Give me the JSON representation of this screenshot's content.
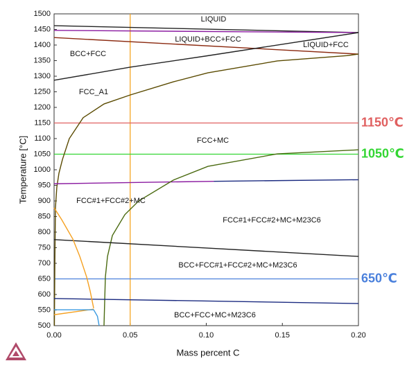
{
  "chart_data": {
    "type": "line",
    "xlabel": "Mass percent C",
    "ylabel": "Temperature [°C]",
    "xlim": [
      0,
      0.2
    ],
    "ylim": [
      500,
      1500
    ],
    "xticks": [
      {
        "value": 0,
        "label": "0.00"
      },
      0.05,
      {
        "value": 0.1,
        "label": "0.10"
      },
      0.15,
      {
        "value": 0.2,
        "label": "0.20"
      }
    ],
    "yticks": [
      500,
      550,
      600,
      650,
      700,
      750,
      800,
      850,
      900,
      950,
      1000,
      1050,
      1100,
      1150,
      1200,
      1250,
      1300,
      1350,
      1400,
      1450,
      1500
    ],
    "grid": false,
    "reference_lines": [
      {
        "value": 1150,
        "label": "1150℃",
        "color": "#e06060"
      },
      {
        "value": 1050,
        "label": "1050℃",
        "color": "#33d633"
      },
      {
        "value": 650,
        "label": "650℃",
        "color": "#4a80dc"
      }
    ],
    "vertical_lines": [
      {
        "value": 0.05,
        "color": "#f5a623"
      }
    ],
    "regions": [
      "LIQUID",
      "LIQUID+BCC+FCC",
      "LIQUID+FCC",
      "BCC+FCC",
      "FCC_A1",
      "FCC+MC",
      "FCC#1+FCC#2+MC",
      "FCC#1+FCC#2+MC+M23C6",
      "BCC+FCC#1+FCC#2+MC+M23C6",
      "BCC+FCC+MC+M23C6"
    ],
    "series": [
      {
        "color": "#222222",
        "x": [
          0,
          0.2
        ],
        "values": [
          1462,
          1440
        ]
      },
      {
        "color": "#8a1aa0",
        "x": [
          0,
          0.2
        ],
        "values": [
          1447,
          1440
        ]
      },
      {
        "color": "#8b2a10",
        "x": [
          0,
          0.2
        ],
        "values": [
          1424,
          1371
        ]
      },
      {
        "color": "#222222",
        "x": [
          0,
          0.05,
          0.1,
          0.2
        ],
        "values": [
          1287,
          1329,
          1365,
          1440
        ]
      },
      {
        "color": "#5a4a00",
        "x": [
          0.0002,
          0.0005,
          0.0009,
          0.0018,
          0.0032,
          0.0055,
          0.01,
          0.0191,
          0.0328,
          0.0501,
          0.0784,
          0.1011,
          0.1467,
          0.1923,
          0.2
        ],
        "values": [
          500,
          700,
          878,
          944,
          989,
          1033,
          1100,
          1167,
          1211,
          1240,
          1282,
          1311,
          1349,
          1366,
          1371
        ]
      },
      {
        "color": "#8a1aa0",
        "x": [
          0,
          0.105
        ],
        "values": [
          955,
          963
        ]
      },
      {
        "color": "#1a2a80",
        "x": [
          0.105,
          0.2
        ],
        "values": [
          963,
          968
        ]
      },
      {
        "color": "#4a6a10",
        "x": [
          0.0328,
          0.0337,
          0.0351,
          0.0383,
          0.0465,
          0.0556,
          0.0784,
          0.1011,
          0.1467,
          0.2
        ],
        "values": [
          500,
          656,
          722,
          789,
          856,
          900,
          967,
          1011,
          1051,
          1064
        ]
      },
      {
        "color": "#222222",
        "x": [
          0,
          0.1,
          0.2
        ],
        "values": [
          776,
          749,
          722
        ]
      },
      {
        "color": "#1a2a80",
        "x": [
          0,
          0.2
        ],
        "values": [
          587,
          571
        ]
      },
      {
        "color": "#f5a020",
        "x": [
          0,
          0.005,
          0.0123,
          0.0169,
          0.0214,
          0.0237,
          0.026
        ],
        "values": [
          878,
          840,
          778,
          722,
          656,
          611,
          556
        ]
      },
      {
        "color": "#f5a020",
        "x": [
          0,
          0.026
        ],
        "values": [
          535,
          553
        ]
      },
      {
        "color": "#3a9ae0",
        "x": [
          0,
          0.026,
          0.0285,
          0.0296
        ],
        "values": [
          551,
          551,
          530,
          500
        ]
      }
    ]
  }
}
